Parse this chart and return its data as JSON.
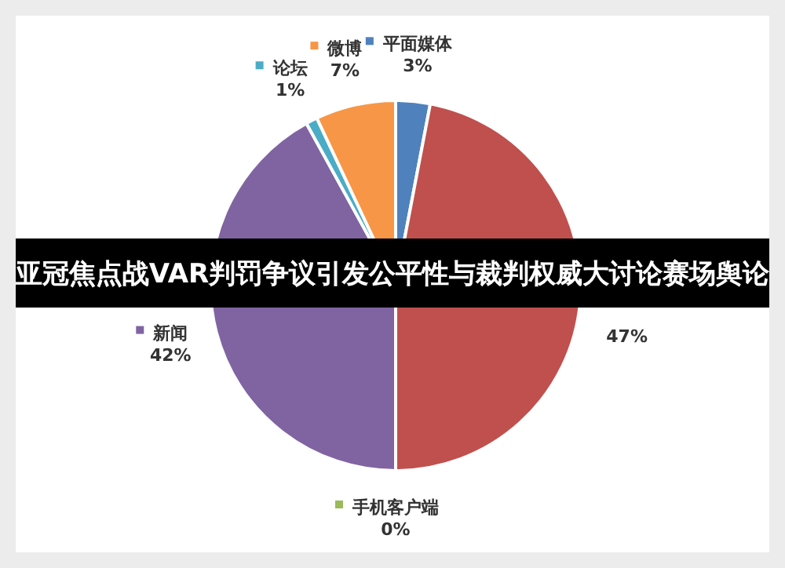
{
  "chart_data": {
    "type": "pie",
    "title": "亚冠焦点战VAR判罚争议引发公平性与裁判权威大讨论赛场舆论",
    "categories": [
      "平面媒体",
      null,
      "手机客户端",
      "新闻",
      "论坛",
      "微博"
    ],
    "values": [
      3,
      47,
      0,
      42,
      1,
      7
    ],
    "colors": [
      "#4f81bd",
      "#c0504d",
      "#9bbb59",
      "#8064a2",
      "#4bacc6",
      "#f79646"
    ],
    "value_labels": [
      "3%",
      "47%",
      "0%",
      "42%",
      "1%",
      "7%"
    ],
    "legend": "top"
  }
}
